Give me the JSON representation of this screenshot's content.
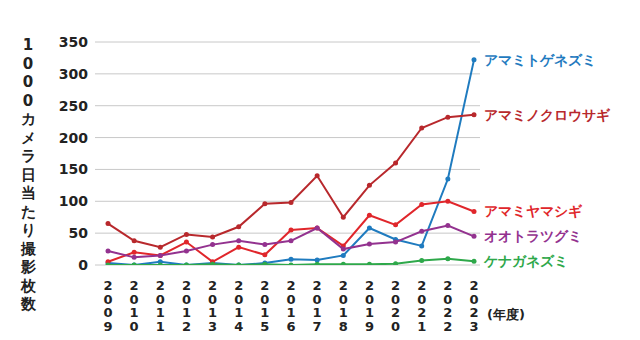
{
  "chart_data": {
    "type": "line",
    "y_label": "1000カメラ日当たり撮影枚数",
    "x_label": "(年度)",
    "categories": [
      "2009",
      "2010",
      "2011",
      "2012",
      "2013",
      "2014",
      "2015",
      "2016",
      "2017",
      "2018",
      "2019",
      "2020",
      "2021",
      "2022",
      "2023"
    ],
    "series": [
      {
        "name": "アマミトゲネズミ",
        "color": "#1f7bbf",
        "marker": "circle",
        "values": [
          3,
          0,
          5,
          0,
          3,
          0,
          3,
          9,
          8,
          15,
          58,
          40,
          30,
          135,
          322
        ]
      },
      {
        "name": "アマミノクロウサギ",
        "color": "#b8282c",
        "marker": "circle",
        "values": [
          65,
          38,
          28,
          48,
          44,
          60,
          96,
          98,
          140,
          75,
          125,
          160,
          215,
          232,
          236
        ]
      },
      {
        "name": "アマミヤマシギ",
        "color": "#e0262b",
        "marker": "circle",
        "values": [
          5,
          20,
          15,
          36,
          5,
          28,
          16,
          55,
          58,
          30,
          78,
          63,
          95,
          100,
          84
        ]
      },
      {
        "name": "オオトラツグミ",
        "color": "#93328f",
        "marker": "circle",
        "values": [
          22,
          12,
          15,
          22,
          32,
          38,
          32,
          38,
          58,
          25,
          33,
          36,
          53,
          62,
          45
        ]
      },
      {
        "name": "ケナガネズミ",
        "color": "#2ea84a",
        "marker": "circle",
        "values": [
          0,
          0,
          0,
          0,
          1,
          0,
          1,
          0,
          1,
          1,
          1,
          2,
          7,
          10,
          6
        ]
      }
    ],
    "ylim": [
      0,
      350
    ],
    "yticks": [
      0,
      50,
      100,
      150,
      200,
      250,
      300,
      350
    ],
    "grid": true,
    "legend": "right"
  }
}
